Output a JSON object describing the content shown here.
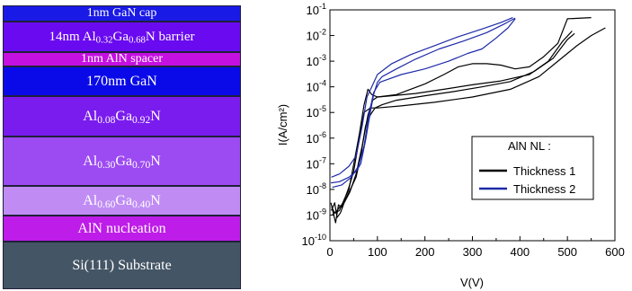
{
  "layer_stack": {
    "layers": [
      {
        "id": "cap",
        "parts": [
          {
            "t": "1nm GaN cap"
          }
        ],
        "color": "#1a1ae6"
      },
      {
        "id": "barrier",
        "parts": [
          {
            "t": "14nm Al"
          },
          {
            "t": "0.32",
            "sub": true
          },
          {
            "t": "Ga"
          },
          {
            "t": "0.68",
            "sub": true
          },
          {
            "t": "N barrier"
          }
        ],
        "color": "#6a0af0"
      },
      {
        "id": "spacer",
        "parts": [
          {
            "t": "1nm AlN spacer"
          }
        ],
        "color": "#c410e0"
      },
      {
        "id": "gan",
        "parts": [
          {
            "t": "170nm GaN"
          }
        ],
        "color": "#0a0ae8"
      },
      {
        "id": "algan008",
        "parts": [
          {
            "t": "Al"
          },
          {
            "t": "0.08",
            "sub": true
          },
          {
            "t": "Ga"
          },
          {
            "t": "0.92",
            "sub": true
          },
          {
            "t": "N"
          }
        ],
        "color": "#7a1cee"
      },
      {
        "id": "algan030",
        "parts": [
          {
            "t": "Al"
          },
          {
            "t": "0.30",
            "sub": true
          },
          {
            "t": "Ga"
          },
          {
            "t": "0.70",
            "sub": true
          },
          {
            "t": "N"
          }
        ],
        "color": "#9c4af2"
      },
      {
        "id": "algan060",
        "parts": [
          {
            "t": "Al"
          },
          {
            "t": "0.60",
            "sub": true
          },
          {
            "t": "Ga"
          },
          {
            "t": "0.40",
            "sub": true
          },
          {
            "t": "N"
          }
        ],
        "color": "#c08cf4"
      },
      {
        "id": "aln",
        "parts": [
          {
            "t": "AlN nucleation"
          }
        ],
        "color": "#be1ce8"
      },
      {
        "id": "si",
        "parts": [
          {
            "t": "Si(111) Substrate"
          }
        ],
        "color": "#445565"
      }
    ]
  },
  "chart_data": {
    "type": "line",
    "xlabel": "V(V)",
    "ylabel": "I(A/cm²)",
    "xlim": [
      0,
      600
    ],
    "ylim": [
      1e-10,
      0.1
    ],
    "y_scale": "log",
    "x_ticks": [
      0,
      100,
      200,
      300,
      400,
      500,
      600
    ],
    "y_ticks": [
      {
        "v": 1e-10,
        "exp": "-10"
      },
      {
        "v": 1e-09,
        "exp": "-9"
      },
      {
        "v": 1e-08,
        "exp": "-8"
      },
      {
        "v": 1e-07,
        "exp": "-7"
      },
      {
        "v": 1e-06,
        "exp": "-6"
      },
      {
        "v": 1e-05,
        "exp": "-5"
      },
      {
        "v": 0.0001,
        "exp": "-4"
      },
      {
        "v": 0.001,
        "exp": "-3"
      },
      {
        "v": 0.01,
        "exp": "-2"
      },
      {
        "v": 0.1,
        "exp": "-1"
      }
    ],
    "tick_base": "10",
    "legend": {
      "title": "AlN NL :",
      "position": "center-right"
    },
    "series": [
      {
        "name": "Thickness 1",
        "color": "#000000",
        "curves": [
          [
            [
              2,
              3e-09
            ],
            [
              8,
              1e-09
            ],
            [
              12,
              5e-10
            ],
            [
              18,
              2.5e-09
            ],
            [
              25,
              2e-09
            ],
            [
              35,
              5e-09
            ],
            [
              45,
              1.2e-08
            ],
            [
              55,
              3e-08
            ],
            [
              65,
              2e-07
            ],
            [
              75,
              3e-06
            ],
            [
              85,
              8e-06
            ],
            [
              95,
              1.5e-05
            ],
            [
              110,
              2e-05
            ],
            [
              140,
              3e-05
            ],
            [
              200,
              4.5e-05
            ],
            [
              260,
              6.5e-05
            ],
            [
              320,
              0.0001
            ],
            [
              380,
              0.00016
            ],
            [
              430,
              0.0004
            ],
            [
              470,
              0.0013
            ],
            [
              500,
              0.007
            ],
            [
              515,
              0.012
            ]
          ],
          [
            [
              3,
              1.5e-09
            ],
            [
              10,
              3e-09
            ],
            [
              15,
              8e-10
            ],
            [
              22,
              1.2e-09
            ],
            [
              30,
              3e-09
            ],
            [
              42,
              8e-09
            ],
            [
              55,
              4e-08
            ],
            [
              68,
              5e-07
            ],
            [
              80,
              8e-06
            ],
            [
              90,
              3e-05
            ],
            [
              100,
              4e-05
            ],
            [
              130,
              4.5e-05
            ],
            [
              180,
              5.5e-05
            ],
            [
              240,
              8e-05
            ],
            [
              300,
              0.00012
            ],
            [
              360,
              0.00017
            ],
            [
              420,
              0.0003
            ],
            [
              460,
              0.001
            ],
            [
              490,
              0.006
            ],
            [
              505,
              0.012
            ],
            [
              510,
              0.015
            ]
          ],
          [
            [
              4,
              2e-09
            ],
            [
              10,
              1.2e-09
            ],
            [
              20,
              1.5e-09
            ],
            [
              30,
              4e-09
            ],
            [
              40,
              1e-08
            ],
            [
              52,
              1.5e-07
            ],
            [
              62,
              1.5e-06
            ],
            [
              72,
              2e-05
            ],
            [
              80,
              8e-05
            ],
            [
              88,
              5e-05
            ],
            [
              100,
              4e-05
            ],
            [
              140,
              5e-05
            ],
            [
              200,
              0.00013
            ],
            [
              240,
              0.0003
            ],
            [
              270,
              0.0006
            ],
            [
              300,
              0.0008
            ],
            [
              330,
              0.0008
            ],
            [
              360,
              0.0007
            ],
            [
              390,
              0.0005
            ],
            [
              420,
              0.0006
            ],
            [
              450,
              0.0015
            ],
            [
              480,
              0.005
            ],
            [
              500,
              0.045
            ],
            [
              550,
              0.05
            ]
          ],
          [
            [
              5,
              1e-09
            ],
            [
              15,
              1.5e-09
            ],
            [
              28,
              3e-09
            ],
            [
              40,
              1.2e-08
            ],
            [
              50,
              5e-08
            ],
            [
              60,
              6e-07
            ],
            [
              72,
              1e-05
            ],
            [
              85,
              1.5e-05
            ],
            [
              100,
              1.5e-05
            ],
            [
              150,
              1.8e-05
            ],
            [
              220,
              2.5e-05
            ],
            [
              300,
              4e-05
            ],
            [
              380,
              8e-05
            ],
            [
              440,
              0.00025
            ],
            [
              480,
              0.001
            ],
            [
              520,
              0.004
            ],
            [
              550,
              0.01
            ],
            [
              580,
              0.02
            ]
          ]
        ]
      },
      {
        "name": "Thickness 2",
        "color": "#1e2aa8",
        "curves": [
          [
            [
              2,
              1.8e-08
            ],
            [
              20,
              2e-08
            ],
            [
              40,
              3e-08
            ],
            [
              55,
              5e-08
            ],
            [
              65,
              1e-07
            ],
            [
              75,
              8e-07
            ],
            [
              85,
              1e-05
            ],
            [
              92,
              5e-05
            ],
            [
              100,
              0.00015
            ],
            [
              110,
              0.00025
            ],
            [
              140,
              0.0005
            ],
            [
              180,
              0.0012
            ],
            [
              230,
              0.003
            ],
            [
              280,
              0.006
            ],
            [
              330,
              0.013
            ],
            [
              370,
              0.03
            ],
            [
              390,
              0.048
            ]
          ],
          [
            [
              3,
              3e-08
            ],
            [
              20,
              4e-08
            ],
            [
              40,
              8e-08
            ],
            [
              55,
              2e-07
            ],
            [
              68,
              3e-06
            ],
            [
              78,
              4e-05
            ],
            [
              88,
              0.0001
            ],
            [
              100,
              0.0003
            ],
            [
              130,
              0.0008
            ],
            [
              170,
              0.0018
            ],
            [
              220,
              0.004
            ],
            [
              270,
              0.009
            ],
            [
              320,
              0.018
            ],
            [
              360,
              0.032
            ],
            [
              385,
              0.05
            ]
          ],
          [
            [
              5,
              1.2e-08
            ],
            [
              25,
              1.5e-08
            ],
            [
              45,
              3e-08
            ],
            [
              60,
              8e-08
            ],
            [
              72,
              5e-07
            ],
            [
              82,
              8e-06
            ],
            [
              92,
              6e-05
            ],
            [
              105,
              0.00015
            ],
            [
              150,
              0.0003
            ],
            [
              200,
              0.0005
            ],
            [
              250,
              0.001
            ],
            [
              290,
              0.002
            ],
            [
              320,
              0.003
            ],
            [
              350,
              0.008
            ],
            [
              375,
              0.02
            ],
            [
              390,
              0.045
            ]
          ]
        ]
      }
    ]
  }
}
